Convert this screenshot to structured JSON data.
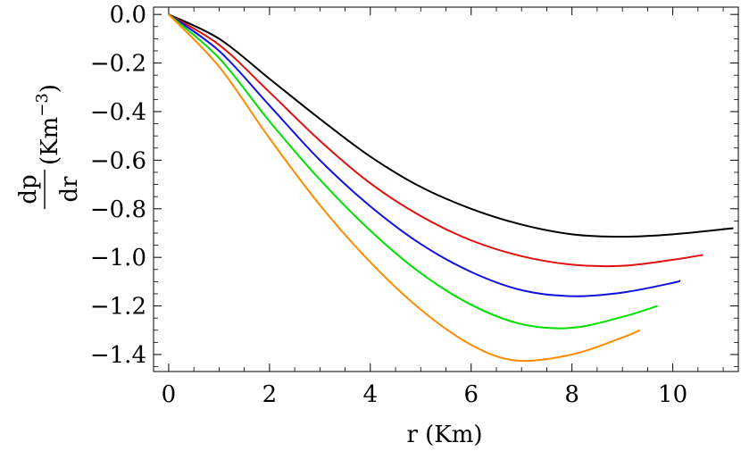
{
  "chart_data": {
    "type": "line",
    "title": "",
    "xlabel": "r (Km)",
    "ylabel": {
      "numerator": "dp",
      "denominator": "dr",
      "unit_base": "(Km",
      "unit_exp": "−3",
      "unit_close": ")"
    },
    "xlim": [
      -0.3,
      11.3
    ],
    "ylim": [
      -1.47,
      0.03
    ],
    "x_ticks": [
      {
        "value": 0,
        "label": "0"
      },
      {
        "value": 2,
        "label": "2"
      },
      {
        "value": 4,
        "label": "4"
      },
      {
        "value": 6,
        "label": "6"
      },
      {
        "value": 8,
        "label": "8"
      },
      {
        "value": 10,
        "label": "10"
      }
    ],
    "y_ticks": [
      {
        "value": 0.0,
        "label": "0.0"
      },
      {
        "value": -0.2,
        "label": "−0.2"
      },
      {
        "value": -0.4,
        "label": "−0.4"
      },
      {
        "value": -0.6,
        "label": "−0.6"
      },
      {
        "value": -0.8,
        "label": "−0.8"
      },
      {
        "value": -1.0,
        "label": "−1.0"
      },
      {
        "value": -1.2,
        "label": "−1.2"
      },
      {
        "value": -1.4,
        "label": "−1.4"
      }
    ],
    "grid": false,
    "legend": "none",
    "series": [
      {
        "color": "#000000",
        "x": [
          0,
          1,
          2,
          3,
          4,
          5,
          6,
          7,
          8,
          9,
          10,
          11.2
        ],
        "y": [
          0.0,
          -0.1,
          -0.265,
          -0.43,
          -0.585,
          -0.71,
          -0.8,
          -0.865,
          -0.905,
          -0.915,
          -0.905,
          -0.88
        ]
      },
      {
        "color": "#e01010",
        "x": [
          0,
          1,
          2,
          3,
          4,
          5,
          6,
          7,
          8,
          9,
          10,
          10.6
        ],
        "y": [
          0.0,
          -0.125,
          -0.32,
          -0.52,
          -0.695,
          -0.83,
          -0.93,
          -0.995,
          -1.03,
          -1.035,
          -1.01,
          -0.99
        ]
      },
      {
        "color": "#1010e0",
        "x": [
          0,
          1,
          2,
          3,
          4,
          5,
          6,
          7,
          8,
          9,
          10,
          10.15
        ],
        "y": [
          0.0,
          -0.15,
          -0.375,
          -0.6,
          -0.79,
          -0.945,
          -1.06,
          -1.135,
          -1.16,
          -1.145,
          -1.105,
          -1.095
        ]
      },
      {
        "color": "#00e000",
        "x": [
          0,
          1,
          2,
          3,
          4,
          5,
          6,
          7,
          8,
          9,
          9.7
        ],
        "y": [
          0.0,
          -0.18,
          -0.44,
          -0.68,
          -0.89,
          -1.065,
          -1.195,
          -1.275,
          -1.29,
          -1.245,
          -1.2
        ]
      },
      {
        "color": "#ff8c00",
        "x": [
          0,
          1,
          2,
          3,
          4,
          5,
          6,
          6.9,
          8,
          9,
          9.35
        ],
        "y": [
          0.0,
          -0.215,
          -0.51,
          -0.785,
          -1.02,
          -1.215,
          -1.36,
          -1.425,
          -1.4,
          -1.33,
          -1.3
        ]
      }
    ]
  }
}
